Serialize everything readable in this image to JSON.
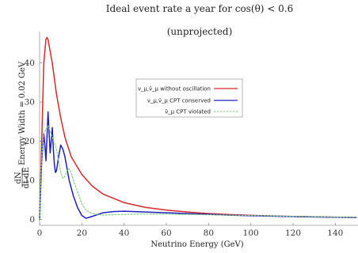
{
  "chart_data": {
    "type": "line",
    "title": "Ideal event rate a year for cos(θ) < 0.6",
    "subtitle": "(unprojected)",
    "xlabel": "Neutrino Energy (GeV)",
    "ylabel": {
      "fraction_num": "dN",
      "fraction_den": "dt dE",
      "rest": "Energy Width = 0.02 GeV"
    },
    "xlim": [
      0,
      150
    ],
    "ylim": [
      -1.5,
      48
    ],
    "xticks": [
      0,
      20,
      40,
      60,
      80,
      100,
      120,
      140
    ],
    "yticks": [
      0,
      10,
      20,
      30,
      40
    ],
    "grid": false,
    "legend_position": "center",
    "series": [
      {
        "name": "ν_μ,ν̄_μ without oscillation",
        "color": "#d62728",
        "style": "solid",
        "x": [
          0,
          1,
          2,
          3,
          3.5,
          4,
          5,
          6,
          7,
          8,
          10,
          12,
          15,
          20,
          25,
          30,
          40,
          50,
          60,
          70,
          80,
          90,
          100,
          110,
          120,
          130,
          140,
          150
        ],
        "y": [
          0,
          20,
          40,
          46,
          46.5,
          46,
          43,
          40,
          36,
          32,
          26,
          21,
          16,
          11.5,
          8.5,
          6.5,
          4.3,
          3.1,
          2.4,
          1.9,
          1.5,
          1.25,
          1.05,
          0.9,
          0.78,
          0.68,
          0.6,
          0.5
        ]
      },
      {
        "name": "ν_μ,ν̄_μ CPT conserved",
        "color": "#1f1fbf",
        "style": "solid",
        "x": [
          0,
          1,
          2,
          2.5,
          3,
          3.5,
          4,
          4.5,
          5,
          5.5,
          6,
          6.5,
          7,
          7.5,
          8,
          9,
          10,
          11,
          12,
          13,
          14,
          16,
          18,
          20,
          22,
          25,
          30,
          35,
          40,
          50,
          60,
          70,
          80,
          90,
          100,
          110,
          120,
          130,
          140,
          150
        ],
        "y": [
          0,
          15,
          22,
          19,
          15,
          21,
          27.5,
          22,
          17,
          20,
          23.5,
          18,
          14,
          12,
          12.5,
          16,
          19,
          18,
          16,
          13,
          10,
          6,
          3,
          1,
          0.3,
          0.8,
          1.7,
          2,
          2.1,
          1.9,
          1.7,
          1.5,
          1.3,
          1.1,
          0.95,
          0.85,
          0.75,
          0.65,
          0.58,
          0.5
        ]
      },
      {
        "name": "ν̄_μ CPT violated",
        "color": "#7fd07f",
        "style": "dashed",
        "x": [
          0,
          1,
          2,
          3,
          4,
          5,
          6,
          7,
          8,
          9,
          10,
          11,
          12,
          13,
          14,
          15,
          16,
          18,
          20,
          22,
          25,
          30,
          40,
          50,
          60,
          80,
          100,
          120,
          150
        ],
        "y": [
          0,
          16,
          22,
          23,
          24,
          22.5,
          21,
          19.5,
          18,
          15,
          12,
          10.5,
          11,
          12.5,
          13,
          12,
          10,
          7,
          4,
          2.3,
          1.5,
          1.1,
          1.3,
          1.4,
          1.35,
          1.2,
          1,
          0.8,
          0.5
        ]
      }
    ]
  }
}
